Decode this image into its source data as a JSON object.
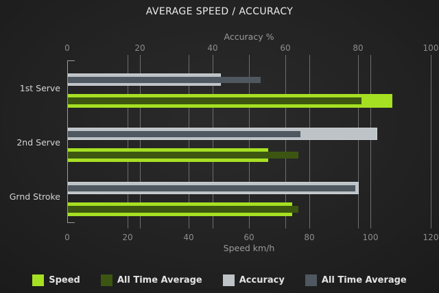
{
  "chart_data": {
    "type": "bar",
    "orientation": "horizontal",
    "title": "AVERAGE SPEED / ACCURACY",
    "top_axis": {
      "label": "Accuracy %",
      "min": 0,
      "max": 100,
      "ticks": [
        0,
        20,
        40,
        60,
        80,
        100
      ]
    },
    "bottom_axis": {
      "label": "Speed km/h",
      "min": 0,
      "max": 120,
      "ticks": [
        0,
        20,
        40,
        60,
        80,
        100,
        120
      ]
    },
    "categories": [
      "1st Serve",
      "2nd Serve",
      "Grnd Stroke"
    ],
    "series": [
      {
        "name": "Speed",
        "axis": "bottom",
        "color": "#a6e022",
        "values": [
          107,
          66,
          74
        ]
      },
      {
        "name": "All Time Average",
        "axis": "bottom",
        "color": "#3c5611",
        "values": [
          97,
          76,
          76
        ]
      },
      {
        "name": "Accuracy",
        "axis": "top",
        "color": "#bdc3c7",
        "values": [
          42,
          85,
          80
        ]
      },
      {
        "name": "All Time Average",
        "axis": "top",
        "color": "#4f5860",
        "values": [
          53,
          64,
          79
        ]
      }
    ],
    "legend": [
      {
        "label": "Speed",
        "color": "#a6e022"
      },
      {
        "label": "All Time Average",
        "color": "#3c5611"
      },
      {
        "label": "Accuracy",
        "color": "#bdc3c7"
      },
      {
        "label": "All Time Average",
        "color": "#4f5860"
      }
    ],
    "grid": true,
    "legend_position": "bottom"
  }
}
